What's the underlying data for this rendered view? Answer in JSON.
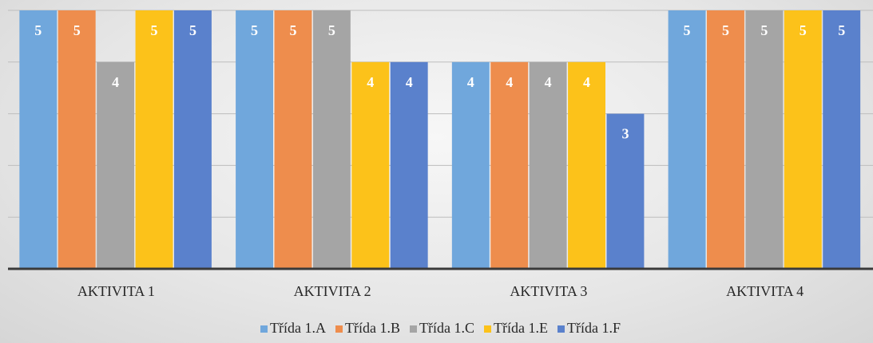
{
  "chart_data": {
    "type": "bar",
    "categories": [
      "AKTIVITA 1",
      "AKTIVITA 2",
      "AKTIVITA 3",
      "AKTIVITA 4"
    ],
    "series": [
      {
        "name": "Třída 1.A",
        "color": "#70a7dc",
        "values": [
          5,
          5,
          4,
          5
        ]
      },
      {
        "name": "Třída 1.B",
        "color": "#ee8d4d",
        "values": [
          5,
          5,
          4,
          5
        ]
      },
      {
        "name": "Třída 1.C",
        "color": "#a5a5a5",
        "values": [
          4,
          5,
          4,
          5
        ]
      },
      {
        "name": "Třída 1.E",
        "color": "#fcc21a",
        "values": [
          5,
          4,
          4,
          5
        ]
      },
      {
        "name": "Třída 1.F",
        "color": "#5a81cc",
        "values": [
          5,
          4,
          3,
          5
        ]
      }
    ],
    "ylim": [
      0,
      5
    ],
    "yticks": [
      0,
      1,
      2,
      3,
      4,
      5
    ],
    "grid": true,
    "legend": "bottom"
  }
}
